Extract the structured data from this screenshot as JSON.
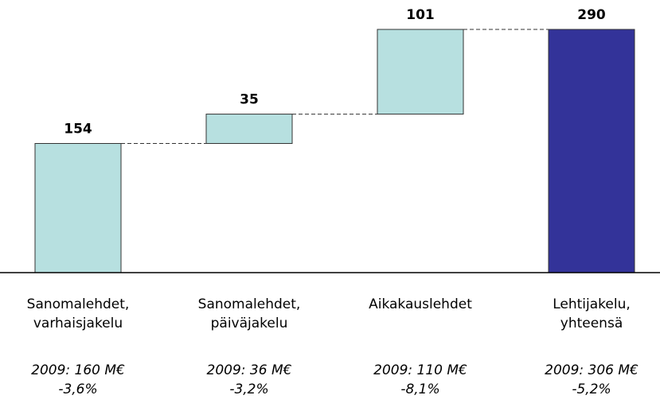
{
  "chart_data": {
    "type": "waterfall",
    "categories": [
      [
        "Sanomalehdet,",
        "varhaisjakelu"
      ],
      [
        "Sanomalehdet,",
        "päiväjakelu"
      ],
      [
        "Aikakauslehdet"
      ],
      [
        "Lehtijakelu,",
        "yhteensä"
      ]
    ],
    "values": [
      154,
      35,
      101,
      290
    ],
    "is_total": [
      false,
      false,
      false,
      true
    ],
    "colors": {
      "step": "#b7e0e0",
      "total": "#333399"
    },
    "notes": [
      [
        "2009: 160 M€",
        "-3,6%"
      ],
      [
        "2009: 36 M€",
        "-3,2%"
      ],
      [
        "2009: 110 M€",
        "-8,1%"
      ],
      [
        "2009: 306 M€",
        "-5,2%"
      ]
    ],
    "ylim": [
      0,
      290
    ]
  }
}
